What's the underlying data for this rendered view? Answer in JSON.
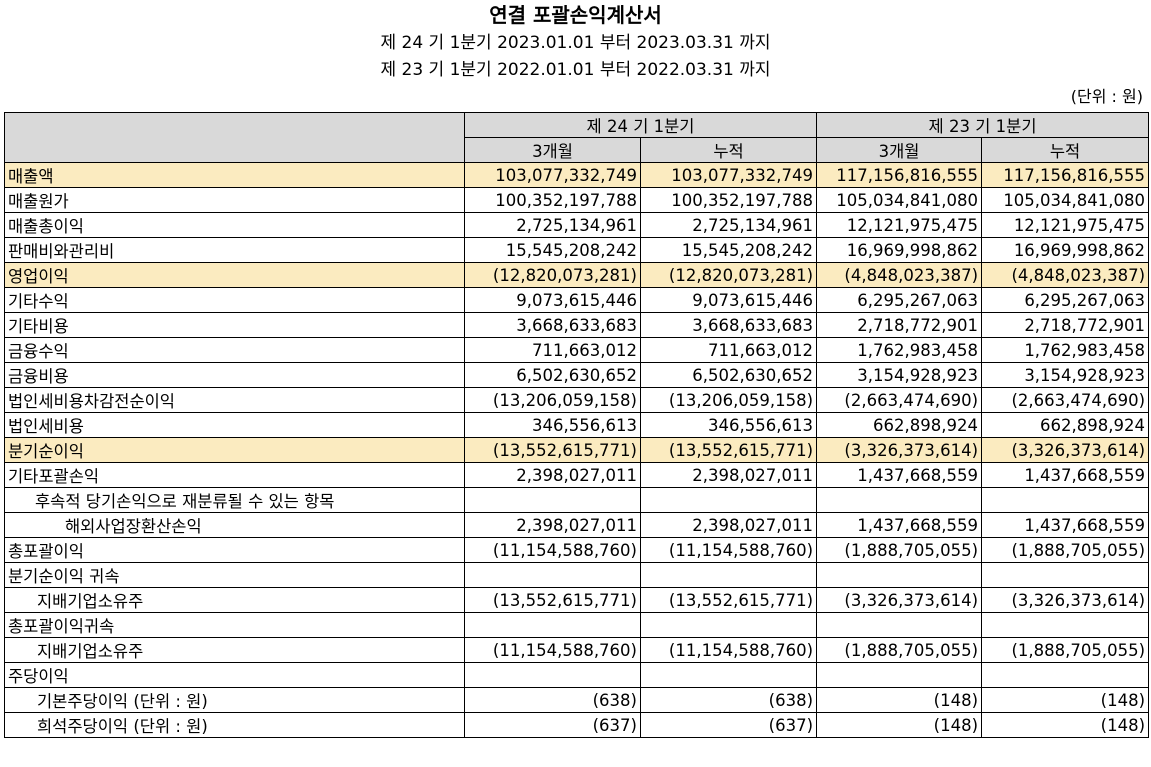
{
  "header": {
    "title": "연결 포괄손익계산서",
    "period_current": "제 24 기 1분기 2023.01.01 부터 2023.03.31 까지",
    "period_prior": "제 23 기 1분기 2022.01.01 부터 2022.03.31 까지",
    "unit": "(단위 : 원)"
  },
  "table": {
    "group_headers": [
      "제 24 기 1분기",
      "제 23 기 1분기"
    ],
    "sub_headers": [
      "3개월",
      "누적",
      "3개월",
      "누적"
    ],
    "rows": [
      {
        "label": "매출액",
        "v": [
          "103,077,332,749",
          "103,077,332,749",
          "117,156,816,555",
          "117,156,816,555"
        ]
      },
      {
        "label": "매출원가",
        "v": [
          "100,352,197,788",
          "100,352,197,788",
          "105,034,841,080",
          "105,034,841,080"
        ]
      },
      {
        "label": "매출총이익",
        "v": [
          "2,725,134,961",
          "2,725,134,961",
          "12,121,975,475",
          "12,121,975,475"
        ]
      },
      {
        "label": "판매비와관리비",
        "v": [
          "15,545,208,242",
          "15,545,208,242",
          "16,969,998,862",
          "16,969,998,862"
        ]
      },
      {
        "label": "영업이익",
        "v": [
          "(12,820,073,281)",
          "(12,820,073,281)",
          "(4,848,023,387)",
          "(4,848,023,387)"
        ]
      },
      {
        "label": "기타수익",
        "v": [
          "9,073,615,446",
          "9,073,615,446",
          "6,295,267,063",
          "6,295,267,063"
        ]
      },
      {
        "label": "기타비용",
        "v": [
          "3,668,633,683",
          "3,668,633,683",
          "2,718,772,901",
          "2,718,772,901"
        ]
      },
      {
        "label": "금융수익",
        "v": [
          "711,663,012",
          "711,663,012",
          "1,762,983,458",
          "1,762,983,458"
        ]
      },
      {
        "label": "금융비용",
        "v": [
          "6,502,630,652",
          "6,502,630,652",
          "3,154,928,923",
          "3,154,928,923"
        ]
      },
      {
        "label": "법인세비용차감전순이익",
        "v": [
          "(13,206,059,158)",
          "(13,206,059,158)",
          "(2,663,474,690)",
          "(2,663,474,690)"
        ]
      },
      {
        "label": "법인세비용",
        "v": [
          "346,556,613",
          "346,556,613",
          "662,898,924",
          "662,898,924"
        ]
      },
      {
        "label": "분기순이익",
        "v": [
          "(13,552,615,771)",
          "(13,552,615,771)",
          "(3,326,373,614)",
          "(3,326,373,614)"
        ]
      },
      {
        "label": "기타포괄손익",
        "v": [
          "2,398,027,011",
          "2,398,027,011",
          "1,437,668,559",
          "1,437,668,559"
        ]
      },
      {
        "label": "후속적 당기손익으로 재분류될 수 있는 항목",
        "v": [
          "",
          "",
          "",
          ""
        ]
      },
      {
        "label": "해외사업장환산손익",
        "v": [
          "2,398,027,011",
          "2,398,027,011",
          "1,437,668,559",
          "1,437,668,559"
        ]
      },
      {
        "label": "총포괄이익",
        "v": [
          "(11,154,588,760)",
          "(11,154,588,760)",
          "(1,888,705,055)",
          "(1,888,705,055)"
        ]
      },
      {
        "label": "분기순이익 귀속",
        "v": [
          "",
          "",
          "",
          ""
        ]
      },
      {
        "label": "지배기업소유주",
        "v": [
          "(13,552,615,771)",
          "(13,552,615,771)",
          "(3,326,373,614)",
          "(3,326,373,614)"
        ]
      },
      {
        "label": "총포괄이익귀속",
        "v": [
          "",
          "",
          "",
          ""
        ]
      },
      {
        "label": "지배기업소유주",
        "v": [
          "(11,154,588,760)",
          "(11,154,588,760)",
          "(1,888,705,055)",
          "(1,888,705,055)"
        ]
      },
      {
        "label": "주당이익",
        "v": [
          "",
          "",
          "",
          ""
        ]
      },
      {
        "label": "기본주당이익 (단위 : 원)",
        "v": [
          "(638)",
          "(638)",
          "(148)",
          "(148)"
        ]
      },
      {
        "label": "희석주당이익 (단위 : 원)",
        "v": [
          "(637)",
          "(637)",
          "(148)",
          "(148)"
        ]
      }
    ]
  }
}
